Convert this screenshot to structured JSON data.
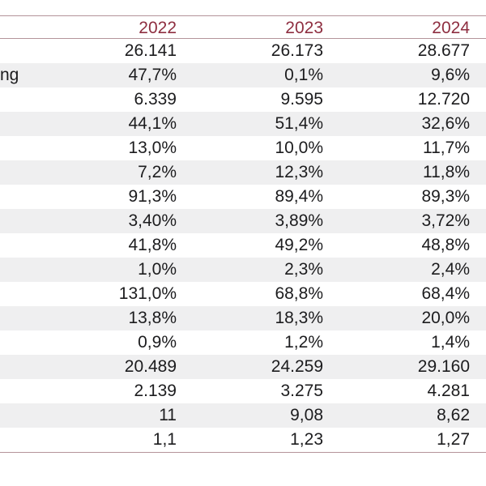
{
  "table": {
    "columns": [
      "2022",
      "2023",
      "2024"
    ],
    "corner_label": "",
    "rows": [
      {
        "label": "",
        "values": [
          "26.141",
          "26.173",
          "28.677"
        ]
      },
      {
        "label": "ng",
        "values": [
          "47,7%",
          "0,1%",
          "9,6%"
        ]
      },
      {
        "label": "",
        "values": [
          "6.339",
          "9.595",
          "12.720"
        ]
      },
      {
        "label": "",
        "values": [
          "44,1%",
          "51,4%",
          "32,6%"
        ]
      },
      {
        "label": "",
        "values": [
          "13,0%",
          "10,0%",
          "11,7%"
        ]
      },
      {
        "label": "",
        "values": [
          "7,2%",
          "12,3%",
          "11,8%"
        ]
      },
      {
        "label": "",
        "values": [
          "91,3%",
          "89,4%",
          "89,3%"
        ]
      },
      {
        "label": "",
        "values": [
          "3,40%",
          "3,89%",
          "3,72%"
        ]
      },
      {
        "label": "",
        "values": [
          "41,8%",
          "49,2%",
          "48,8%"
        ]
      },
      {
        "label": "",
        "values": [
          "1,0%",
          "2,3%",
          "2,4%"
        ]
      },
      {
        "label": "",
        "values": [
          "131,0%",
          "68,8%",
          "68,4%"
        ]
      },
      {
        "label": "",
        "values": [
          "13,8%",
          "18,3%",
          "20,0%"
        ]
      },
      {
        "label": "",
        "values": [
          "0,9%",
          "1,2%",
          "1,4%"
        ]
      },
      {
        "label": "",
        "values": [
          "20.489",
          "24.259",
          "29.160"
        ]
      },
      {
        "label": "",
        "values": [
          "2.139",
          "3.275",
          "4.281"
        ]
      },
      {
        "label": "",
        "values": [
          "11",
          "9,08",
          "8,62"
        ]
      },
      {
        "label": "",
        "values": [
          "1,1",
          "1,23",
          "1,27"
        ]
      }
    ]
  },
  "colors": {
    "header_text": "#8e2e40",
    "rule_line": "#b4949a",
    "alt_row_background": "#efeff0",
    "value_text": "#1c1c1e",
    "background": "#ffffff"
  }
}
